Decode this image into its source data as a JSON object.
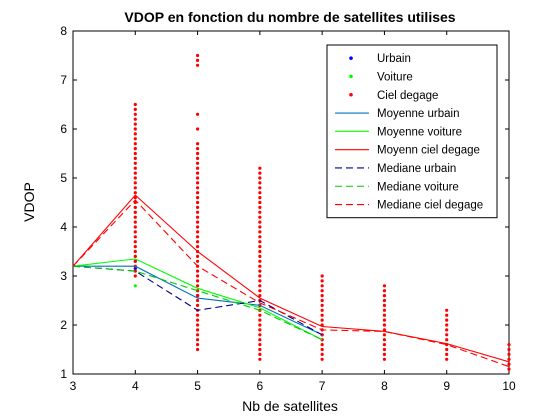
{
  "chart_data": {
    "type": "scatter",
    "title": "VDOP en fonction du nombre de satellites utilises",
    "xlabel": "Nb de satellites",
    "ylabel": "VDOP",
    "xlim": [
      3,
      10
    ],
    "ylim": [
      1,
      8
    ],
    "xticks": [
      3,
      4,
      5,
      6,
      7,
      8,
      9,
      10
    ],
    "yticks": [
      1,
      2,
      3,
      4,
      5,
      6,
      7,
      8
    ],
    "grid": false,
    "legend_position": "top-right",
    "scatter_series": [
      {
        "name": "Urbain",
        "color": "#0000ff",
        "points": [
          [
            4,
            3.3
          ],
          [
            4,
            3.15
          ],
          [
            5,
            2.6
          ],
          [
            6,
            2.4
          ],
          [
            7,
            1.8
          ]
        ]
      },
      {
        "name": "Voiture",
        "color": "#00ff00",
        "points": [
          [
            4,
            4.3
          ],
          [
            4,
            3.4
          ],
          [
            4,
            2.8
          ],
          [
            5,
            2.7
          ],
          [
            6,
            2.3
          ],
          [
            7,
            1.7
          ]
        ]
      },
      {
        "name": "Ciel degage",
        "color": "#ff0000",
        "columns": [
          {
            "x": 4,
            "ymin": 3.0,
            "ymax": 6.5,
            "extra": []
          },
          {
            "x": 5,
            "ymin": 1.5,
            "ymax": 5.7,
            "extra": [
              6.0,
              6.3,
              7.3,
              7.4,
              7.5
            ]
          },
          {
            "x": 6,
            "ymin": 1.3,
            "ymax": 5.2,
            "extra": []
          },
          {
            "x": 7,
            "ymin": 1.3,
            "ymax": 3.0,
            "extra": []
          },
          {
            "x": 8,
            "ymin": 1.3,
            "ymax": 2.8,
            "extra": []
          },
          {
            "x": 9,
            "ymin": 1.3,
            "ymax": 2.3,
            "extra": []
          },
          {
            "x": 10,
            "ymin": 1.1,
            "ymax": 1.6,
            "extra": []
          }
        ],
        "step": 0.1
      }
    ],
    "line_series": [
      {
        "name": "Moyenne urbain",
        "color": "#0072bd",
        "dash": "solid",
        "x": [
          3,
          4,
          5,
          6,
          7
        ],
        "y": [
          3.2,
          3.2,
          2.55,
          2.4,
          1.8
        ]
      },
      {
        "name": "Moyenne voiture",
        "color": "#00ff00",
        "dash": "solid",
        "x": [
          3,
          4,
          5,
          6,
          7
        ],
        "y": [
          3.2,
          3.35,
          2.75,
          2.35,
          1.7
        ]
      },
      {
        "name": "Moyenn ciel degage",
        "color": "#ff0000",
        "dash": "solid",
        "x": [
          3,
          4,
          5,
          6,
          7,
          8,
          9,
          10
        ],
        "y": [
          3.2,
          4.65,
          3.5,
          2.55,
          1.97,
          1.87,
          1.62,
          1.25
        ]
      },
      {
        "name": "Mediane urbain",
        "color": "#00008b",
        "dash": "dashed",
        "x": [
          3,
          4,
          5,
          6,
          7
        ],
        "y": [
          3.2,
          3.1,
          2.3,
          2.5,
          1.8
        ]
      },
      {
        "name": "Mediane voiture",
        "color": "#00cc00",
        "dash": "dashed",
        "x": [
          3,
          4,
          5,
          6,
          7
        ],
        "y": [
          3.2,
          3.1,
          2.7,
          2.3,
          1.7
        ]
      },
      {
        "name": "Mediane ciel degage",
        "color": "#ff0000",
        "dash": "dashed",
        "x": [
          3,
          4,
          5,
          6,
          7,
          8,
          9,
          10
        ],
        "y": [
          3.2,
          4.55,
          3.2,
          2.45,
          1.9,
          1.87,
          1.6,
          1.15
        ]
      }
    ],
    "legend": [
      {
        "label": "Urbain",
        "kind": "marker",
        "color": "#0000ff"
      },
      {
        "label": "Voiture",
        "kind": "marker",
        "color": "#00ff00"
      },
      {
        "label": "Ciel degage",
        "kind": "marker",
        "color": "#ff0000"
      },
      {
        "label": "Moyenne urbain",
        "kind": "line",
        "color": "#0072bd",
        "dash": "solid"
      },
      {
        "label": "Moyenne voiture",
        "kind": "line",
        "color": "#00ff00",
        "dash": "solid"
      },
      {
        "label": "Moyenn ciel degage",
        "kind": "line",
        "color": "#ff0000",
        "dash": "solid"
      },
      {
        "label": "Mediane urbain",
        "kind": "line",
        "color": "#00008b",
        "dash": "dashed"
      },
      {
        "label": "Mediane voiture",
        "kind": "line",
        "color": "#00cc00",
        "dash": "dashed"
      },
      {
        "label": "Mediane ciel degage",
        "kind": "line",
        "color": "#ff0000",
        "dash": "dashed"
      }
    ]
  }
}
